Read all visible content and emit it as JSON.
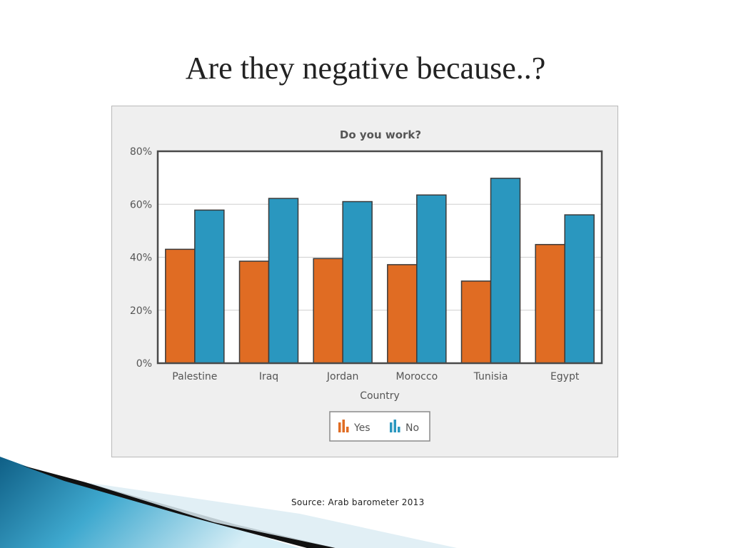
{
  "slide": {
    "title": "Are they negative because..?",
    "source": "Source: Arab barometer 2013"
  },
  "colors": {
    "yes": "#e06c23",
    "no": "#2a97bf",
    "plot_bg": "#ffffff",
    "frame_bg": "#efefef"
  },
  "chart_data": {
    "type": "bar",
    "title": "Do you work?",
    "xlabel": "Country",
    "ylabel": "",
    "categories": [
      "Palestine",
      "Iraq",
      "Jordan",
      "Morocco",
      "Tunisia",
      "Egypt"
    ],
    "series": [
      {
        "name": "Yes",
        "values": [
          43,
          38.5,
          39.5,
          37.2,
          31,
          44.8
        ]
      },
      {
        "name": "No",
        "values": [
          57.8,
          62.2,
          61,
          63.5,
          69.8,
          56
        ]
      }
    ],
    "ylim": [
      0,
      80
    ],
    "yticks": [
      "0%",
      "20%",
      "40%",
      "60%",
      "80%"
    ],
    "ytick_values": [
      0,
      20,
      40,
      60,
      80
    ],
    "grid": true,
    "legend_position": "bottom-center"
  }
}
